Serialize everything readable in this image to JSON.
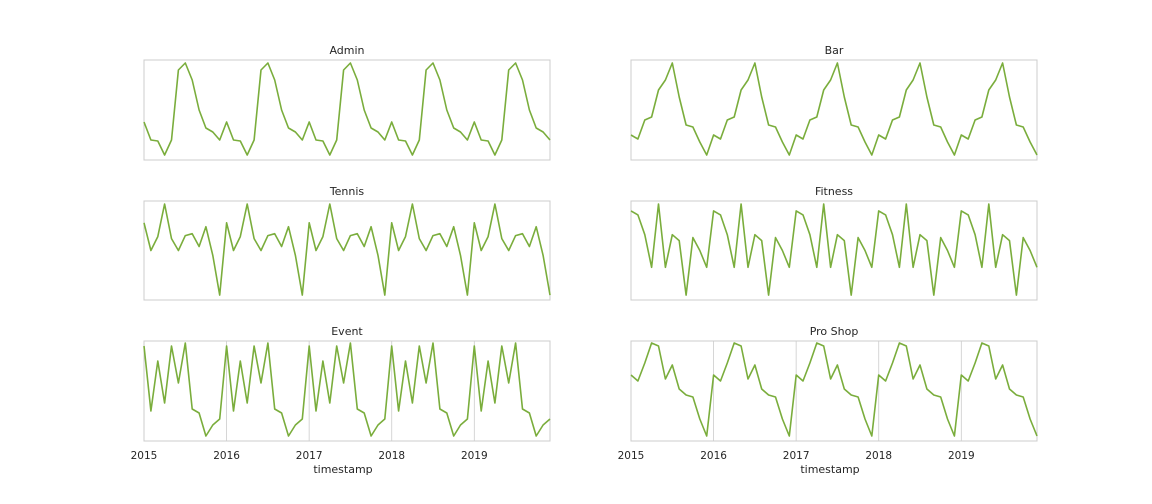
{
  "chart_data": {
    "type": "line",
    "line_color": "#7aad3c",
    "x": {
      "label": "timestamp",
      "start_year": 2015,
      "n_points": 60,
      "tick_labels": [
        "2015",
        "2016",
        "2017",
        "2018",
        "2019"
      ]
    },
    "grid": "vertical at year boundaries (bottom row only)",
    "panels": [
      {
        "title": "Admin",
        "yrange": [
          0,
          1
        ],
        "pattern": [
          0.38,
          0.2,
          0.19,
          0.05,
          0.2,
          0.9,
          0.97,
          0.8,
          0.5,
          0.32,
          0.28,
          0.2
        ]
      },
      {
        "title": "Bar",
        "yrange": [
          0,
          1
        ],
        "pattern": [
          0.25,
          0.21,
          0.4,
          0.43,
          0.7,
          0.8,
          0.97,
          0.63,
          0.35,
          0.33,
          0.18,
          0.05
        ]
      },
      {
        "title": "Tennis",
        "yrange": [
          0,
          1
        ],
        "pattern": [
          0.78,
          0.5,
          0.64,
          0.97,
          0.62,
          0.5,
          0.65,
          0.67,
          0.54,
          0.74,
          0.45,
          0.05
        ]
      },
      {
        "title": "Fitness",
        "yrange": [
          0,
          1
        ],
        "pattern": [
          0.9,
          0.86,
          0.66,
          0.33,
          0.97,
          0.33,
          0.66,
          0.6,
          0.05,
          0.63,
          0.5,
          0.33
        ]
      },
      {
        "title": "Event",
        "yrange": [
          0,
          1
        ],
        "pattern": [
          0.95,
          0.3,
          0.8,
          0.38,
          0.95,
          0.58,
          0.98,
          0.32,
          0.28,
          0.05,
          0.16,
          0.22
        ]
      },
      {
        "title": "Pro Shop",
        "yrange": [
          0,
          1
        ],
        "pattern": [
          0.66,
          0.6,
          0.78,
          0.98,
          0.95,
          0.62,
          0.76,
          0.52,
          0.46,
          0.44,
          0.22,
          0.05
        ]
      }
    ]
  }
}
